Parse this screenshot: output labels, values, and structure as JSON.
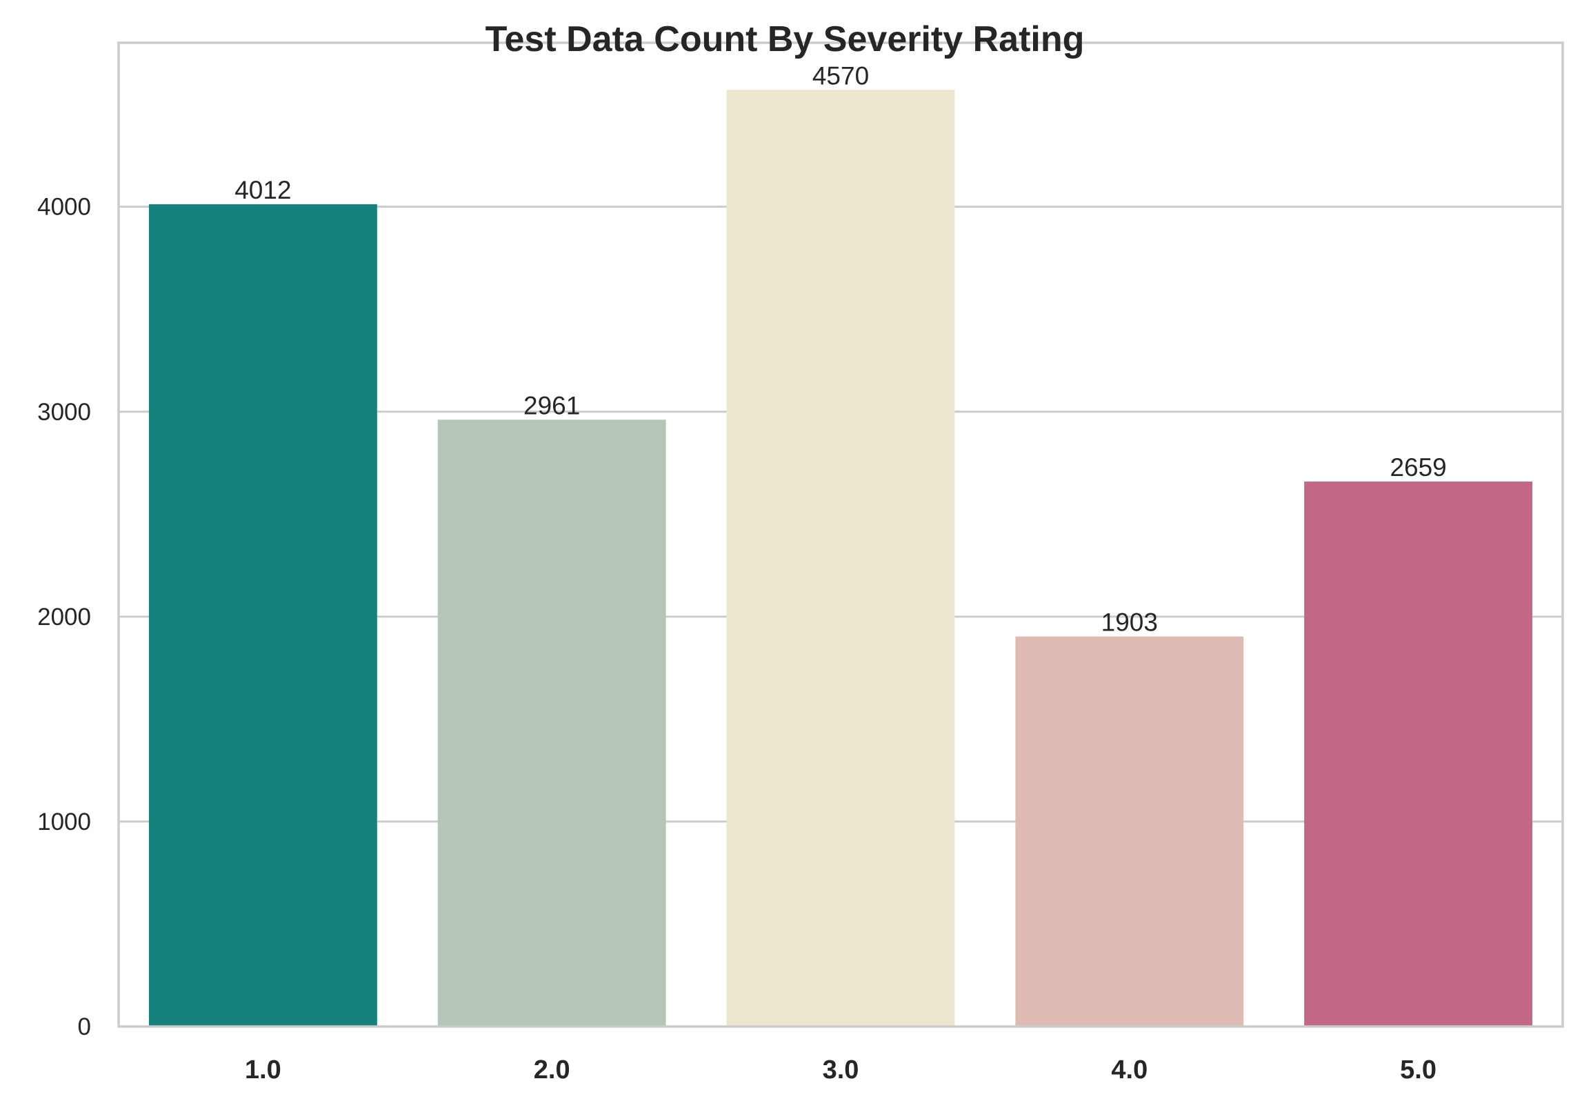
{
  "chart_data": {
    "type": "bar",
    "title": "Test Data Count By Severity Rating",
    "xlabel": "",
    "ylabel": "",
    "categories": [
      "1.0",
      "2.0",
      "3.0",
      "4.0",
      "5.0"
    ],
    "values": [
      4012,
      2961,
      4570,
      1903,
      2659
    ],
    "data_labels": [
      "4012",
      "2961",
      "4570",
      "1903",
      "2659"
    ],
    "colors": [
      "#15827e",
      "#b5c6b8",
      "#ece6cf",
      "#dfbcb3",
      "#c26884"
    ],
    "ylim": [
      0,
      4800
    ],
    "yticks": [
      0,
      1000,
      2000,
      3000,
      4000
    ],
    "ytick_labels": [
      "0",
      "1000",
      "2000",
      "3000",
      "4000"
    ],
    "grid": "horizontal",
    "legend": "none",
    "style": {
      "grid_color": "#cccccc",
      "spine_color": "#cccccc",
      "text_color": "#262626"
    }
  }
}
